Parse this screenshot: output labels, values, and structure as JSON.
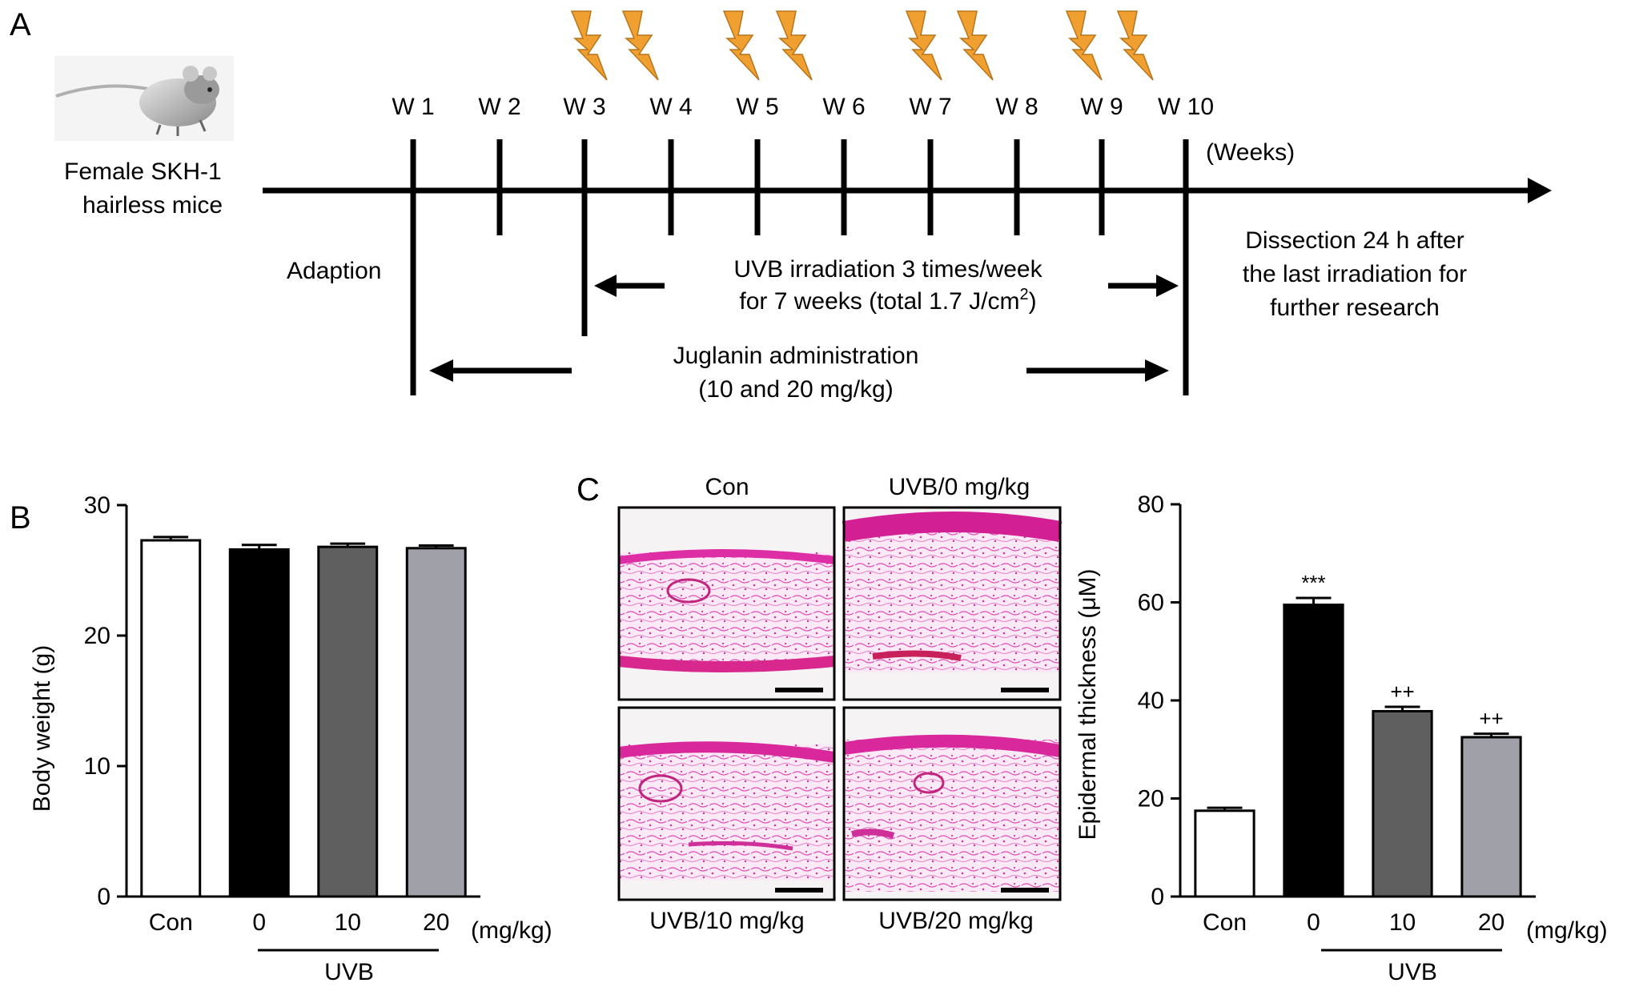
{
  "panel_a": {
    "label": "A",
    "mice_label": [
      "Female SKH-1",
      "hairless mice"
    ],
    "weeks": [
      "W 1",
      "W 2",
      "W 3",
      "W 4",
      "W 5",
      "W 6",
      "W 7",
      "W 8",
      "W 9",
      "W 10"
    ],
    "weeks_unit": "(Weeks)",
    "adaption": "Adaption",
    "uvb_text_1": "UVB irradiation 3 times/week",
    "uvb_text_2_prefix": "for 7 weeks (total 1.7 J/cm",
    "uvb_text_2_sup": "2",
    "uvb_text_2_suffix": ")",
    "juglanin_text_1": "Juglanin administration",
    "juglanin_text_2": "(10 and 20 mg/kg)",
    "dissection": [
      "Dissection 24 h after",
      "the last irradiation for",
      "further research"
    ],
    "lightning_icon": "lightning-bolt-icon",
    "lightning_color": "#f0a030",
    "mouse_icon": "mouse-photo"
  },
  "panel_b": {
    "label": "B",
    "chart_data": {
      "type": "bar",
      "categories": [
        "Con",
        "0",
        "10",
        "20"
      ],
      "values": [
        27.3,
        26.6,
        26.8,
        26.7
      ],
      "errors": [
        0.25,
        0.35,
        0.25,
        0.2
      ],
      "fills": [
        "#ffffff",
        "#000000",
        "#5f5f5f",
        "#9fa0a8"
      ],
      "ylabel": "Body weight (g)",
      "ylim": [
        0,
        30
      ],
      "yticks": [
        0,
        10,
        20,
        30
      ],
      "unit_label": "(mg/kg)",
      "group_label": "UVB",
      "annotations": [
        "",
        "",
        "",
        ""
      ]
    }
  },
  "panel_c": {
    "label": "C",
    "micro_labels": [
      "Con",
      "UVB/0 mg/kg",
      "UVB/10 mg/kg",
      "UVB/20 mg/kg"
    ],
    "stain_color": "#e23fb5",
    "chart_data": {
      "type": "bar",
      "categories": [
        "Con",
        "0",
        "10",
        "20"
      ],
      "values": [
        17.5,
        59.5,
        37.8,
        32.5
      ],
      "errors": [
        0.6,
        1.4,
        0.9,
        0.7
      ],
      "fills": [
        "#ffffff",
        "#000000",
        "#5f5f5f",
        "#9fa0a8"
      ],
      "ylabel": "Epidermal thickness (μM)",
      "ylim": [
        0,
        80
      ],
      "yticks": [
        0,
        20,
        40,
        60,
        80
      ],
      "unit_label": "(mg/kg)",
      "group_label": "UVB",
      "annotations": [
        "",
        "***",
        "++",
        "++"
      ]
    }
  }
}
